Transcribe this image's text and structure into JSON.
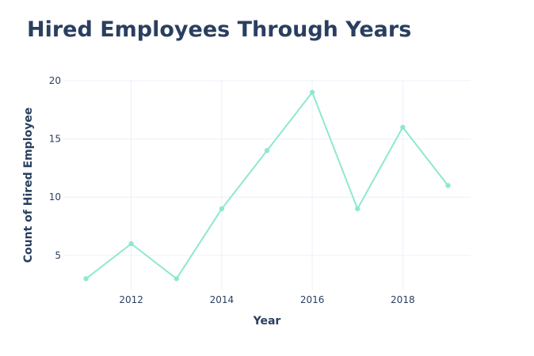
{
  "chart_data": {
    "type": "line",
    "title": "Hired Employees Through Years",
    "xlabel": "Year",
    "ylabel": "Count of Hired Employee",
    "x": [
      2011,
      2012,
      2013,
      2014,
      2015,
      2016,
      2017,
      2018,
      2019
    ],
    "series": [
      {
        "values": [
          3,
          6,
          3,
          9,
          14,
          19,
          9,
          16,
          11
        ]
      }
    ],
    "xticks": [
      "2012",
      "2014",
      "2016",
      "2018"
    ],
    "yticks": [
      "5",
      "10",
      "15",
      "20"
    ],
    "xlim": [
      2010.5,
      2019.5
    ],
    "ylim": [
      2,
      20
    ],
    "grid": true,
    "line_color": "#8ee8d0"
  }
}
